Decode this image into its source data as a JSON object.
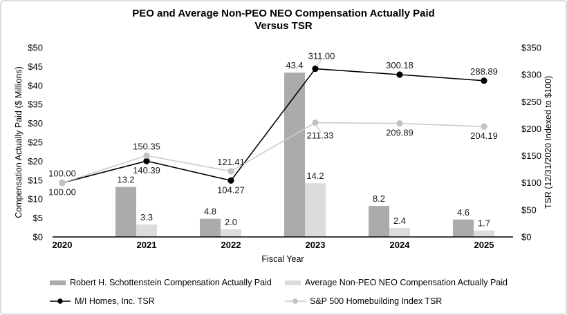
{
  "chart_data": {
    "type": "combo-bar-line",
    "title": "PEO and Average Non-PEO NEO Compensation Actually Paid Versus TSR",
    "title_lines": [
      "PEO and Average Non-PEO NEO Compensation Actually Paid",
      "Versus TSR"
    ],
    "xlabel": "Fiscal Year",
    "ylabel_left": "Compensation Actually Paid ($ Millions)",
    "ylabel_right": "TSR (12/31/2020 Indexed to $100)",
    "categories": [
      "2020",
      "2021",
      "2022",
      "2023",
      "2024",
      "2025"
    ],
    "left_axis": {
      "min": 0,
      "max": 50,
      "step": 5,
      "tick_labels": [
        "$0",
        "$5",
        "$10",
        "$15",
        "$20",
        "$25",
        "$30",
        "$35",
        "$40",
        "$45",
        "$50"
      ]
    },
    "right_axis": {
      "min": 0,
      "max": 350,
      "step": 50,
      "tick_labels": [
        "$0",
        "$50",
        "$100",
        "$150",
        "$200",
        "$250",
        "$300",
        "$350"
      ]
    },
    "grid": false,
    "legend_position": "bottom",
    "leader_color": "#b8b8b8",
    "bar_series": [
      {
        "name": "Robert H. Schottenstein Compensation Actually Paid",
        "color": "#ababab",
        "values": [
          null,
          13.2,
          4.8,
          43.4,
          8.2,
          4.6
        ],
        "labels": [
          "",
          "13.2",
          "4.8",
          "43.4",
          "8.2",
          "4.6"
        ]
      },
      {
        "name": "Average Non-PEO NEO Compensation Actually Paid",
        "color": "#dcdcdc",
        "values": [
          null,
          3.3,
          2.0,
          14.2,
          2.4,
          1.7
        ],
        "labels": [
          "",
          "3.3",
          "2.0",
          "14.2",
          "2.4",
          "1.7"
        ]
      }
    ],
    "line_series": [
      {
        "name": "M/I Homes, Inc. TSR",
        "line_color": "#000000",
        "marker_color": "#000000",
        "values": [
          100.0,
          140.39,
          104.27,
          311.0,
          300.18,
          288.89
        ],
        "labels": [
          "100.00",
          "140.39",
          "104.27",
          "311.00",
          "300.18",
          "288.89"
        ],
        "label_pos": [
          "below",
          "below",
          "below",
          "above",
          "above",
          "above"
        ],
        "label_dx": [
          0,
          0,
          0,
          9,
          0,
          0
        ],
        "label_dy": [
          null,
          null,
          null,
          -14,
          null,
          null
        ],
        "leader": [
          false,
          false,
          false,
          true,
          false,
          false
        ]
      },
      {
        "name": "S&P 500 Homebuilding Index TSR",
        "line_color": "#cccccc",
        "marker_color": "#c2c2c2",
        "values": [
          100.0,
          150.35,
          121.41,
          211.33,
          209.89,
          204.19
        ],
        "labels": [
          "100.00",
          "150.35",
          "121.41",
          "211.33",
          "209.89",
          "204.19"
        ],
        "label_pos": [
          "above",
          "above",
          "above",
          "below",
          "below",
          "below"
        ],
        "label_dx": [
          0,
          0,
          0,
          7,
          0,
          0
        ],
        "label_dy": [
          null,
          null,
          null,
          23,
          null,
          null
        ],
        "leader": [
          false,
          false,
          false,
          true,
          false,
          false
        ]
      }
    ]
  }
}
